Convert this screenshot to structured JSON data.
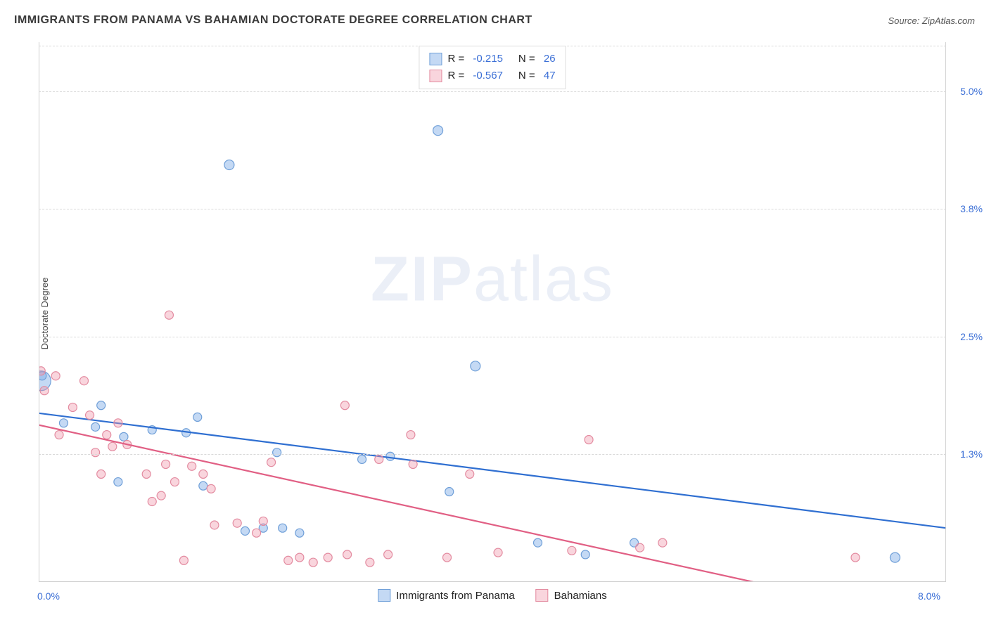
{
  "header": {
    "title": "IMMIGRANTS FROM PANAMA VS BAHAMIAN DOCTORATE DEGREE CORRELATION CHART",
    "source": "Source: ZipAtlas.com"
  },
  "watermark": {
    "bold": "ZIP",
    "light": "atlas"
  },
  "chart": {
    "type": "scatter",
    "background_color": "#ffffff",
    "grid_color": "#d9d9d9",
    "axis_color": "#cfcfcf",
    "value_color": "#3b6fd6",
    "x": {
      "min": 0.0,
      "max": 8.0,
      "ticks": [
        0.0,
        8.0
      ],
      "tick_labels": [
        "0.0%",
        "8.0%"
      ]
    },
    "y": {
      "min": 0.0,
      "max": 5.5,
      "ticks": [
        1.3,
        2.5,
        3.8,
        5.0
      ],
      "tick_labels": [
        "1.3%",
        "2.5%",
        "3.8%",
        "5.0%"
      ]
    },
    "y_title": "Doctorate Degree",
    "series": [
      {
        "name": "Immigrants from Panama",
        "color_fill": "rgba(125,170,230,0.45)",
        "color_stroke": "#6f9fd8",
        "line_color": "#2f6fd1",
        "R": "-0.215",
        "N": "26",
        "trend": {
          "x1": 0.0,
          "y1": 1.72,
          "x2": 8.0,
          "y2": 0.55
        },
        "points": [
          {
            "x": 0.02,
            "y": 2.05,
            "r": 14
          },
          {
            "x": 0.03,
            "y": 2.1,
            "r": 6
          },
          {
            "x": 0.22,
            "y": 1.62,
            "r": 6
          },
          {
            "x": 0.5,
            "y": 1.58,
            "r": 6
          },
          {
            "x": 0.55,
            "y": 1.8,
            "r": 6
          },
          {
            "x": 0.7,
            "y": 1.02,
            "r": 6
          },
          {
            "x": 0.75,
            "y": 1.48,
            "r": 6
          },
          {
            "x": 1.0,
            "y": 1.55,
            "r": 6
          },
          {
            "x": 1.3,
            "y": 1.52,
            "r": 6
          },
          {
            "x": 1.4,
            "y": 1.68,
            "r": 6
          },
          {
            "x": 1.45,
            "y": 0.98,
            "r": 6
          },
          {
            "x": 1.68,
            "y": 4.25,
            "r": 7
          },
          {
            "x": 1.82,
            "y": 0.52,
            "r": 6
          },
          {
            "x": 1.98,
            "y": 0.55,
            "r": 6
          },
          {
            "x": 2.1,
            "y": 1.32,
            "r": 6
          },
          {
            "x": 2.15,
            "y": 0.55,
            "r": 6
          },
          {
            "x": 2.3,
            "y": 0.5,
            "r": 6
          },
          {
            "x": 2.85,
            "y": 1.25,
            "r": 6
          },
          {
            "x": 3.1,
            "y": 1.28,
            "r": 6
          },
          {
            "x": 3.52,
            "y": 4.6,
            "r": 7
          },
          {
            "x": 3.62,
            "y": 0.92,
            "r": 6
          },
          {
            "x": 3.85,
            "y": 2.2,
            "r": 7
          },
          {
            "x": 4.4,
            "y": 0.4,
            "r": 6
          },
          {
            "x": 4.82,
            "y": 0.28,
            "r": 6
          },
          {
            "x": 5.25,
            "y": 0.4,
            "r": 6
          },
          {
            "x": 7.55,
            "y": 0.25,
            "r": 7
          }
        ]
      },
      {
        "name": "Bahamians",
        "color_fill": "rgba(240,150,170,0.40)",
        "color_stroke": "#e38ba0",
        "line_color": "#e15f84",
        "R": "-0.567",
        "N": "47",
        "trend": {
          "x1": 0.0,
          "y1": 1.6,
          "x2": 6.3,
          "y2": 0.0
        },
        "points": [
          {
            "x": 0.02,
            "y": 2.15,
            "r": 6
          },
          {
            "x": 0.05,
            "y": 1.95,
            "r": 6
          },
          {
            "x": 0.15,
            "y": 2.1,
            "r": 6
          },
          {
            "x": 0.18,
            "y": 1.5,
            "r": 6
          },
          {
            "x": 0.3,
            "y": 1.78,
            "r": 6
          },
          {
            "x": 0.4,
            "y": 2.05,
            "r": 6
          },
          {
            "x": 0.45,
            "y": 1.7,
            "r": 6
          },
          {
            "x": 0.5,
            "y": 1.32,
            "r": 6
          },
          {
            "x": 0.55,
            "y": 1.1,
            "r": 6
          },
          {
            "x": 0.6,
            "y": 1.5,
            "r": 6
          },
          {
            "x": 0.65,
            "y": 1.38,
            "r": 6
          },
          {
            "x": 0.7,
            "y": 1.62,
            "r": 6
          },
          {
            "x": 0.78,
            "y": 1.4,
            "r": 6
          },
          {
            "x": 0.95,
            "y": 1.1,
            "r": 6
          },
          {
            "x": 1.0,
            "y": 0.82,
            "r": 6
          },
          {
            "x": 1.08,
            "y": 0.88,
            "r": 6
          },
          {
            "x": 1.12,
            "y": 1.2,
            "r": 6
          },
          {
            "x": 1.15,
            "y": 2.72,
            "r": 6
          },
          {
            "x": 1.2,
            "y": 1.02,
            "r": 6
          },
          {
            "x": 1.28,
            "y": 0.22,
            "r": 6
          },
          {
            "x": 1.35,
            "y": 1.18,
            "r": 6
          },
          {
            "x": 1.45,
            "y": 1.1,
            "r": 6
          },
          {
            "x": 1.52,
            "y": 0.95,
            "r": 6
          },
          {
            "x": 1.55,
            "y": 0.58,
            "r": 6
          },
          {
            "x": 1.75,
            "y": 0.6,
            "r": 6
          },
          {
            "x": 1.92,
            "y": 0.5,
            "r": 6
          },
          {
            "x": 1.98,
            "y": 0.62,
            "r": 6
          },
          {
            "x": 2.05,
            "y": 1.22,
            "r": 6
          },
          {
            "x": 2.2,
            "y": 0.22,
            "r": 6
          },
          {
            "x": 2.3,
            "y": 0.25,
            "r": 6
          },
          {
            "x": 2.42,
            "y": 0.2,
            "r": 6
          },
          {
            "x": 2.55,
            "y": 0.25,
            "r": 6
          },
          {
            "x": 2.7,
            "y": 1.8,
            "r": 6
          },
          {
            "x": 2.72,
            "y": 0.28,
            "r": 6
          },
          {
            "x": 2.92,
            "y": 0.2,
            "r": 6
          },
          {
            "x": 3.0,
            "y": 1.25,
            "r": 6
          },
          {
            "x": 3.08,
            "y": 0.28,
            "r": 6
          },
          {
            "x": 3.28,
            "y": 1.5,
            "r": 6
          },
          {
            "x": 3.3,
            "y": 1.2,
            "r": 6
          },
          {
            "x": 3.6,
            "y": 0.25,
            "r": 6
          },
          {
            "x": 3.8,
            "y": 1.1,
            "r": 6
          },
          {
            "x": 4.05,
            "y": 0.3,
            "r": 6
          },
          {
            "x": 4.7,
            "y": 0.32,
            "r": 6
          },
          {
            "x": 4.85,
            "y": 1.45,
            "r": 6
          },
          {
            "x": 5.3,
            "y": 0.35,
            "r": 6
          },
          {
            "x": 5.5,
            "y": 0.4,
            "r": 6
          },
          {
            "x": 7.2,
            "y": 0.25,
            "r": 6
          }
        ]
      }
    ],
    "legend_bottom": [
      {
        "label": "Immigrants from Panama",
        "fill": "rgba(125,170,230,0.45)",
        "stroke": "#6f9fd8"
      },
      {
        "label": "Bahamians",
        "fill": "rgba(240,150,170,0.40)",
        "stroke": "#e38ba0"
      }
    ]
  }
}
